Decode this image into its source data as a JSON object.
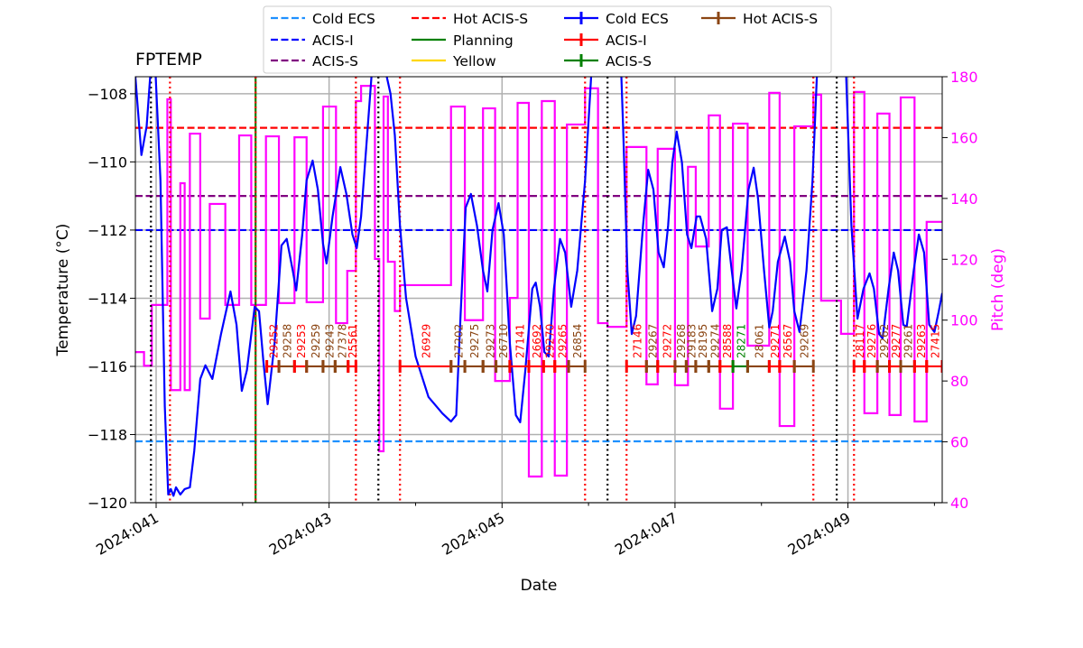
{
  "chart_data": {
    "type": "line",
    "title": "FPTEMP",
    "xlabel": "Date",
    "ylabel": "Temperature ($^\\circ$C)",
    "ylabel_display": "Temperature (°C)",
    "y2label": "Pitch (deg)",
    "xlim": [
      40.76,
      50.09
    ],
    "ylim": [
      -120,
      -107.5
    ],
    "y2lim": [
      40,
      180
    ],
    "grid": true,
    "legend_placement": "top-center, outside",
    "x_ticks": [
      {
        "day": 41,
        "label": "2024:041"
      },
      {
        "day": 43,
        "label": "2024:043"
      },
      {
        "day": 45,
        "label": "2024:045"
      },
      {
        "day": 47,
        "label": "2024:047"
      },
      {
        "day": 49,
        "label": "2024:049"
      }
    ],
    "x_minor_ticks": [
      42,
      44,
      46,
      48,
      50
    ],
    "y_ticks": [
      -120,
      -118,
      -116,
      -114,
      -112,
      -110,
      -108
    ],
    "y2_ticks": [
      40,
      60,
      80,
      100,
      120,
      140,
      160,
      180
    ],
    "colors": {
      "temperature": "#0000ff",
      "pitch": "#ff00ff",
      "acis_i": "#ff0000",
      "acis_s": "#008000",
      "hot_acis_s": "#8b4513",
      "cold_ecs": "#1e90ff",
      "acis_s_limit": "#800080",
      "yellow": "#ffd700"
    },
    "limits": [
      {
        "name": "Cold ECS",
        "value": -118.2,
        "color": "#1e90ff"
      },
      {
        "name": "ACIS-I",
        "value": -112,
        "color": "#0000ff"
      },
      {
        "name": "ACIS-S",
        "value": -111,
        "color": "#800080"
      },
      {
        "name": "Hot ACIS-S",
        "value": -109,
        "color": "#ff0000"
      }
    ],
    "legend": [
      {
        "label": "Cold ECS",
        "style": "dashed",
        "color": "#1e90ff"
      },
      {
        "label": "ACIS-I",
        "style": "dashed",
        "color": "#0000ff"
      },
      {
        "label": "ACIS-S",
        "style": "dashed",
        "color": "#800080"
      },
      {
        "label": "Hot ACIS-S",
        "style": "dashed",
        "color": "#ff0000"
      },
      {
        "label": "Planning",
        "style": "solid",
        "color": "#008000"
      },
      {
        "label": "Yellow",
        "style": "solid",
        "color": "#ffd700"
      },
      {
        "label": "Cold ECS",
        "style": "errorbar",
        "color": "#0000ff"
      },
      {
        "label": "ACIS-I",
        "style": "errorbar",
        "color": "#ff0000"
      },
      {
        "label": "ACIS-S",
        "style": "errorbar",
        "color": "#008000"
      },
      {
        "label": "Hot ACIS-S",
        "style": "errorbar",
        "color": "#8b4513"
      }
    ],
    "planning_lines": [
      42.15
    ],
    "black_dotted_lines": [
      40.94,
      43.57,
      46.22,
      48.87
    ],
    "red_dotted_lines": [
      41.16,
      42.15,
      43.31,
      43.82,
      45.96,
      46.44,
      48.6,
      49.07
    ],
    "temperature": [
      [
        40.76,
        -107.5
      ],
      [
        40.83,
        -109.8
      ],
      [
        40.89,
        -108.95
      ],
      [
        40.94,
        -107.2
      ],
      [
        40.99,
        -107.2
      ],
      [
        41.05,
        -110.54
      ],
      [
        41.1,
        -117.17
      ],
      [
        41.14,
        -119.76
      ],
      [
        41.17,
        -119.6
      ],
      [
        41.2,
        -119.8
      ],
      [
        41.23,
        -119.55
      ],
      [
        41.28,
        -119.76
      ],
      [
        41.33,
        -119.6
      ],
      [
        41.39,
        -119.55
      ],
      [
        41.44,
        -118.49
      ],
      [
        41.51,
        -116.37
      ],
      [
        41.57,
        -115.97
      ],
      [
        41.65,
        -116.37
      ],
      [
        41.75,
        -115.05
      ],
      [
        41.86,
        -113.8
      ],
      [
        41.93,
        -114.78
      ],
      [
        41.99,
        -116.72
      ],
      [
        42.05,
        -116.11
      ],
      [
        42.14,
        -114.25
      ],
      [
        42.19,
        -114.38
      ],
      [
        42.24,
        -115.84
      ],
      [
        42.29,
        -117.11
      ],
      [
        42.37,
        -115.31
      ],
      [
        42.45,
        -112.45
      ],
      [
        42.51,
        -112.26
      ],
      [
        42.58,
        -113.19
      ],
      [
        42.62,
        -113.77
      ],
      [
        42.69,
        -112.13
      ],
      [
        42.74,
        -110.54
      ],
      [
        42.81,
        -109.96
      ],
      [
        42.87,
        -110.81
      ],
      [
        42.93,
        -112.4
      ],
      [
        42.97,
        -112.98
      ],
      [
        43.04,
        -111.6
      ],
      [
        43.13,
        -110.15
      ],
      [
        43.2,
        -110.94
      ],
      [
        43.27,
        -112.13
      ],
      [
        43.32,
        -112.53
      ],
      [
        43.37,
        -111.6
      ],
      [
        43.44,
        -109.22
      ],
      [
        43.49,
        -107.5
      ],
      [
        43.58,
        -106.5
      ],
      [
        43.71,
        -108.0
      ],
      [
        43.76,
        -109.22
      ],
      [
        43.82,
        -111.87
      ],
      [
        43.89,
        -113.99
      ],
      [
        44.0,
        -115.71
      ],
      [
        44.15,
        -116.9
      ],
      [
        44.31,
        -117.38
      ],
      [
        44.41,
        -117.62
      ],
      [
        44.47,
        -117.43
      ],
      [
        44.52,
        -114.52
      ],
      [
        44.58,
        -111.34
      ],
      [
        44.64,
        -110.94
      ],
      [
        44.71,
        -111.87
      ],
      [
        44.78,
        -113.19
      ],
      [
        44.83,
        -113.8
      ],
      [
        44.89,
        -112.0
      ],
      [
        44.96,
        -111.21
      ],
      [
        45.02,
        -112.13
      ],
      [
        45.09,
        -115.31
      ],
      [
        45.16,
        -117.43
      ],
      [
        45.21,
        -117.64
      ],
      [
        45.27,
        -116.11
      ],
      [
        45.35,
        -113.72
      ],
      [
        45.39,
        -113.54
      ],
      [
        45.44,
        -114.25
      ],
      [
        45.49,
        -115.58
      ],
      [
        45.54,
        -115.71
      ],
      [
        45.6,
        -113.72
      ],
      [
        45.67,
        -112.26
      ],
      [
        45.73,
        -112.66
      ],
      [
        45.8,
        -114.25
      ],
      [
        45.87,
        -113.19
      ],
      [
        45.96,
        -110.54
      ],
      [
        46.03,
        -107.5
      ],
      [
        46.19,
        -106.5
      ],
      [
        46.38,
        -107.5
      ],
      [
        46.4,
        -108.95
      ],
      [
        46.45,
        -113.19
      ],
      [
        46.5,
        -115.05
      ],
      [
        46.55,
        -114.52
      ],
      [
        46.63,
        -111.87
      ],
      [
        46.69,
        -110.23
      ],
      [
        46.75,
        -110.81
      ],
      [
        46.81,
        -112.66
      ],
      [
        46.87,
        -113.09
      ],
      [
        46.92,
        -111.87
      ],
      [
        46.97,
        -110.01
      ],
      [
        47.02,
        -109.11
      ],
      [
        47.08,
        -110.01
      ],
      [
        47.14,
        -112.13
      ],
      [
        47.19,
        -112.53
      ],
      [
        47.25,
        -111.6
      ],
      [
        47.29,
        -111.6
      ],
      [
        47.36,
        -112.26
      ],
      [
        47.43,
        -114.38
      ],
      [
        47.49,
        -113.72
      ],
      [
        47.54,
        -112.0
      ],
      [
        47.6,
        -111.92
      ],
      [
        47.65,
        -113.06
      ],
      [
        47.71,
        -114.3
      ],
      [
        47.77,
        -113.19
      ],
      [
        47.85,
        -110.81
      ],
      [
        47.91,
        -110.17
      ],
      [
        47.96,
        -111.07
      ],
      [
        48.03,
        -113.19
      ],
      [
        48.09,
        -114.86
      ],
      [
        48.13,
        -114.38
      ],
      [
        48.19,
        -112.93
      ],
      [
        48.27,
        -112.19
      ],
      [
        48.33,
        -112.93
      ],
      [
        48.38,
        -114.38
      ],
      [
        48.44,
        -114.99
      ],
      [
        48.52,
        -113.19
      ],
      [
        48.59,
        -110.54
      ],
      [
        48.64,
        -107.5
      ],
      [
        48.8,
        -106.5
      ],
      [
        48.98,
        -107.5
      ],
      [
        49.04,
        -111.87
      ],
      [
        49.11,
        -114.6
      ],
      [
        49.18,
        -113.72
      ],
      [
        49.25,
        -113.27
      ],
      [
        49.3,
        -113.72
      ],
      [
        49.36,
        -115.05
      ],
      [
        49.4,
        -115.18
      ],
      [
        49.47,
        -113.72
      ],
      [
        49.53,
        -112.66
      ],
      [
        49.58,
        -113.19
      ],
      [
        49.64,
        -114.78
      ],
      [
        49.68,
        -114.83
      ],
      [
        49.76,
        -113.19
      ],
      [
        49.82,
        -112.13
      ],
      [
        49.88,
        -112.66
      ],
      [
        49.94,
        -114.78
      ],
      [
        50.0,
        -114.99
      ],
      [
        50.05,
        -114.38
      ],
      [
        50.09,
        -113.85
      ]
    ],
    "pitch_steps": [
      [
        40.76,
        89.5
      ],
      [
        40.86,
        85
      ],
      [
        40.95,
        105
      ],
      [
        41.13,
        172.6
      ],
      [
        41.17,
        77
      ],
      [
        41.28,
        145
      ],
      [
        41.33,
        77
      ],
      [
        41.39,
        161.3
      ],
      [
        41.51,
        100.5
      ],
      [
        41.62,
        138.2
      ],
      [
        41.8,
        105
      ],
      [
        41.96,
        160.7
      ],
      [
        42.1,
        105
      ],
      [
        42.27,
        160.4
      ],
      [
        42.42,
        105.6
      ],
      [
        42.6,
        160.1
      ],
      [
        42.74,
        105.9
      ],
      [
        42.93,
        170.2
      ],
      [
        43.08,
        99
      ],
      [
        43.21,
        116.2
      ],
      [
        43.31,
        172
      ],
      [
        43.37,
        177
      ],
      [
        43.53,
        120.1
      ],
      [
        43.58,
        56.9
      ],
      [
        43.63,
        173.5
      ],
      [
        43.68,
        119.2
      ],
      [
        43.76,
        103
      ],
      [
        43.82,
        111.5
      ],
      [
        44.41,
        170.2
      ],
      [
        44.57,
        100
      ],
      [
        44.78,
        169.6
      ],
      [
        44.92,
        80
      ],
      [
        45.09,
        107.3
      ],
      [
        45.18,
        171.4
      ],
      [
        45.31,
        48.6
      ],
      [
        45.46,
        172
      ],
      [
        45.61,
        48.9
      ],
      [
        45.75,
        164.3
      ],
      [
        45.96,
        176.2
      ],
      [
        46.11,
        99
      ],
      [
        46.22,
        97.8
      ],
      [
        46.44,
        156.9
      ],
      [
        46.67,
        78.9
      ],
      [
        46.8,
        156.3
      ],
      [
        47.0,
        78.6
      ],
      [
        47.15,
        150.4
      ],
      [
        47.24,
        124.2
      ],
      [
        47.39,
        167.3
      ],
      [
        47.52,
        70.9
      ],
      [
        47.67,
        164.6
      ],
      [
        47.84,
        91.6
      ],
      [
        48.09,
        174.7
      ],
      [
        48.21,
        65.2
      ],
      [
        48.38,
        163.7
      ],
      [
        48.6,
        174.1
      ],
      [
        48.69,
        106.4
      ],
      [
        48.92,
        95.5
      ],
      [
        49.07,
        175
      ],
      [
        49.19,
        69.4
      ],
      [
        49.34,
        167.9
      ],
      [
        49.48,
        68.8
      ],
      [
        49.61,
        173.2
      ],
      [
        49.77,
        66.7
      ],
      [
        49.91,
        132.3
      ],
      [
        50.09,
        132.3
      ]
    ],
    "obsid_level": -116,
    "obsids": [
      {
        "obsid": "29252",
        "start": 42.28,
        "end": 42.42,
        "mode": "ACIS-I"
      },
      {
        "obsid": "29258",
        "start": 42.42,
        "end": 42.6,
        "mode": "Hot ACIS-S"
      },
      {
        "obsid": "29253",
        "start": 42.6,
        "end": 42.74,
        "mode": "ACIS-I"
      },
      {
        "obsid": "29259",
        "start": 42.74,
        "end": 42.93,
        "mode": "Hot ACIS-S"
      },
      {
        "obsid": "29243",
        "start": 42.93,
        "end": 43.07,
        "mode": "Hot ACIS-S"
      },
      {
        "obsid": "27378",
        "start": 43.07,
        "end": 43.22,
        "mode": "Hot ACIS-S"
      },
      {
        "obsid": "25561",
        "start": 43.22,
        "end": 43.31,
        "mode": "ACIS-I"
      },
      {
        "obsid": "26929",
        "start": 43.82,
        "end": 44.41,
        "mode": "ACIS-I"
      },
      {
        "obsid": "27202",
        "start": 44.41,
        "end": 44.57,
        "mode": "Hot ACIS-S"
      },
      {
        "obsid": "29275",
        "start": 44.57,
        "end": 44.78,
        "mode": "Hot ACIS-S"
      },
      {
        "obsid": "29273",
        "start": 44.78,
        "end": 44.93,
        "mode": "Hot ACIS-S"
      },
      {
        "obsid": "26710",
        "start": 44.93,
        "end": 45.09,
        "mode": "Hot ACIS-S"
      },
      {
        "obsid": "27141",
        "start": 45.09,
        "end": 45.31,
        "mode": "ACIS-I"
      },
      {
        "obsid": "26692",
        "start": 45.31,
        "end": 45.48,
        "mode": "ACIS-I"
      },
      {
        "obsid": "29270",
        "start": 45.48,
        "end": 45.61,
        "mode": "ACIS-I"
      },
      {
        "obsid": "29265",
        "start": 45.61,
        "end": 45.77,
        "mode": "ACIS-I"
      },
      {
        "obsid": "26854",
        "start": 45.77,
        "end": 45.96,
        "mode": "Hot ACIS-S"
      },
      {
        "obsid": "27146",
        "start": 46.44,
        "end": 46.67,
        "mode": "ACIS-I"
      },
      {
        "obsid": "29267",
        "start": 46.67,
        "end": 46.8,
        "mode": "Hot ACIS-S"
      },
      {
        "obsid": "29272",
        "start": 46.8,
        "end": 47.0,
        "mode": "ACIS-I"
      },
      {
        "obsid": "29268",
        "start": 47.0,
        "end": 47.13,
        "mode": "Hot ACIS-S"
      },
      {
        "obsid": "29183",
        "start": 47.13,
        "end": 47.24,
        "mode": "Hot ACIS-S"
      },
      {
        "obsid": "28195",
        "start": 47.24,
        "end": 47.39,
        "mode": "Hot ACIS-S"
      },
      {
        "obsid": "29274",
        "start": 47.39,
        "end": 47.52,
        "mode": "Hot ACIS-S"
      },
      {
        "obsid": "28588",
        "start": 47.52,
        "end": 47.67,
        "mode": "ACIS-I"
      },
      {
        "obsid": "28271",
        "start": 47.67,
        "end": 47.84,
        "mode": "ACIS-S"
      },
      {
        "obsid": "28061",
        "start": 47.84,
        "end": 48.09,
        "mode": "Hot ACIS-S"
      },
      {
        "obsid": "29271",
        "start": 48.09,
        "end": 48.21,
        "mode": "ACIS-I"
      },
      {
        "obsid": "26567",
        "start": 48.21,
        "end": 48.38,
        "mode": "ACIS-I"
      },
      {
        "obsid": "29269",
        "start": 48.38,
        "end": 48.6,
        "mode": "Hot ACIS-S"
      },
      {
        "obsid": "28117",
        "start": 49.07,
        "end": 49.19,
        "mode": "ACIS-I"
      },
      {
        "obsid": "29276",
        "start": 49.19,
        "end": 49.34,
        "mode": "ACIS-I"
      },
      {
        "obsid": "29262",
        "start": 49.34,
        "end": 49.48,
        "mode": "Hot ACIS-S"
      },
      {
        "obsid": "29277",
        "start": 49.48,
        "end": 49.61,
        "mode": "ACIS-I"
      },
      {
        "obsid": "29261",
        "start": 49.61,
        "end": 49.77,
        "mode": "Hot ACIS-S"
      },
      {
        "obsid": "29263",
        "start": 49.77,
        "end": 49.91,
        "mode": "ACIS-I"
      },
      {
        "obsid": "27415",
        "start": 49.91,
        "end": 50.09,
        "mode": "ACIS-I"
      }
    ]
  }
}
